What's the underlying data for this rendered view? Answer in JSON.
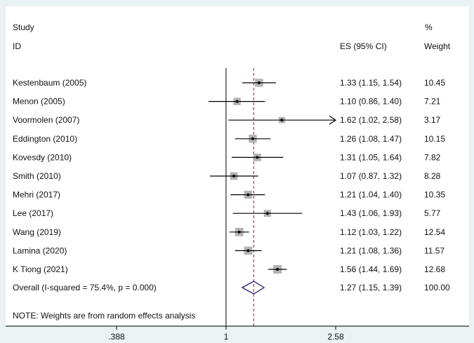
{
  "header": {
    "study_line1": "Study",
    "study_line2": "ID",
    "es_label": "ES (95% CI)",
    "pct_line1": "%",
    "pct_line2": "Weight"
  },
  "note": "NOTE: Weights are from random effects analysis",
  "colors": {
    "background": "#eaf2f3",
    "panel": "#ffffff",
    "marker_box": "#b3b3b3",
    "ci_line": "#000000",
    "null_line": "#000000",
    "overall_line": "#8b1a1a",
    "diamond": "#1f1f7a"
  },
  "chart_data": {
    "type": "forest",
    "effect_measure": "ES",
    "x_scale": "log",
    "x_ticks": [
      0.388,
      1,
      2.58
    ],
    "x_tick_labels": [
      ".388",
      "1",
      "2.58"
    ],
    "xlim": [
      0.388,
      2.58
    ],
    "null_value": 1,
    "studies": [
      {
        "label": "Kestenbaum (2005)",
        "es": 1.33,
        "lower": 1.15,
        "upper": 1.54,
        "ci_text": "1.33 (1.15, 1.54)",
        "weight": "10.45"
      },
      {
        "label": "Menon (2005)",
        "es": 1.1,
        "lower": 0.86,
        "upper": 1.4,
        "ci_text": "1.10 (0.86, 1.40)",
        "weight": "7.21"
      },
      {
        "label": "Voormolen (2007)",
        "es": 1.62,
        "lower": 1.02,
        "upper": 2.58,
        "ci_text": "1.62 (1.02, 2.58)",
        "weight": "3.17",
        "arrow": true
      },
      {
        "label": "Eddington (2010)",
        "es": 1.26,
        "lower": 1.08,
        "upper": 1.47,
        "ci_text": "1.26 (1.08, 1.47)",
        "weight": "10.15"
      },
      {
        "label": "Kovesdy (2010)",
        "es": 1.31,
        "lower": 1.05,
        "upper": 1.64,
        "ci_text": "1.31 (1.05, 1.64)",
        "weight": "7.82"
      },
      {
        "label": "Smith (2010)",
        "es": 1.07,
        "lower": 0.87,
        "upper": 1.32,
        "ci_text": "1.07 (0.87, 1.32)",
        "weight": "8.28"
      },
      {
        "label": "Mehri (2017)",
        "es": 1.21,
        "lower": 1.04,
        "upper": 1.4,
        "ci_text": "1.21 (1.04, 1.40)",
        "weight": "10.35"
      },
      {
        "label": "Lee (2017)",
        "es": 1.43,
        "lower": 1.06,
        "upper": 1.93,
        "ci_text": "1.43 (1.06, 1.93)",
        "weight": "5.77"
      },
      {
        "label": "Wang (2019)",
        "es": 1.12,
        "lower": 1.03,
        "upper": 1.22,
        "ci_text": "1.12 (1.03, 1.22)",
        "weight": "12.54"
      },
      {
        "label": "Lamina (2020)",
        "es": 1.21,
        "lower": 1.08,
        "upper": 1.36,
        "ci_text": "1.21 (1.08, 1.36)",
        "weight": "11.57"
      },
      {
        "label": "K Tiong (2021)",
        "es": 1.56,
        "lower": 1.44,
        "upper": 1.69,
        "ci_text": "1.56 (1.44, 1.69)",
        "weight": "12.68"
      }
    ],
    "overall": {
      "label": "Overall  (I-squared = 75.4%, p = 0.000)",
      "es": 1.27,
      "lower": 1.15,
      "upper": 1.39,
      "ci_text": "1.27 (1.15, 1.39)",
      "weight": "100.00"
    }
  }
}
